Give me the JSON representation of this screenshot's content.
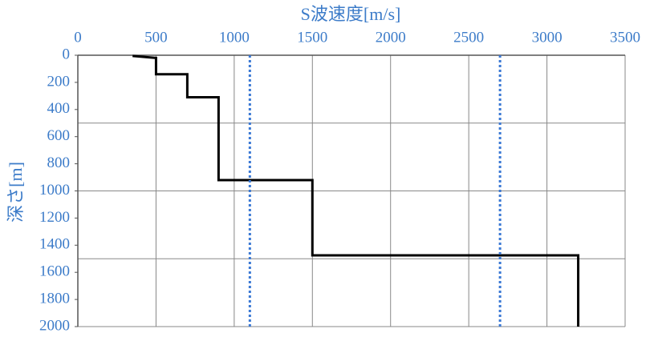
{
  "chart_data": {
    "type": "line",
    "title": "S波速度[m/s]",
    "y_label": "深さ[m]",
    "xlim": [
      0,
      3500
    ],
    "xticks": [
      0,
      500,
      1000,
      1500,
      2000,
      2500,
      3000,
      3500
    ],
    "ylim": [
      0,
      2000
    ],
    "yticks": [
      0,
      200,
      400,
      600,
      800,
      1000,
      1200,
      1400,
      1600,
      1800,
      2000
    ],
    "y_inverted": true,
    "ygrid": [
      500,
      1000,
      1500,
      2000
    ],
    "grid": true,
    "series": [
      {
        "color": "#000000",
        "style": "solid",
        "x": [
          350,
          500,
          500,
          700,
          700,
          900,
          900,
          1500,
          1500,
          3200,
          3200
        ],
        "values": [
          5,
          20,
          140,
          140,
          310,
          310,
          920,
          920,
          1475,
          1475,
          2000
        ]
      },
      {
        "color": "#3a78d4",
        "style": "dotted",
        "x": [
          1100,
          1100
        ],
        "values": [
          0,
          2000
        ]
      },
      {
        "color": "#3a78d4",
        "style": "dotted",
        "x": [
          2700,
          2700
        ],
        "values": [
          0,
          2000
        ]
      }
    ]
  }
}
